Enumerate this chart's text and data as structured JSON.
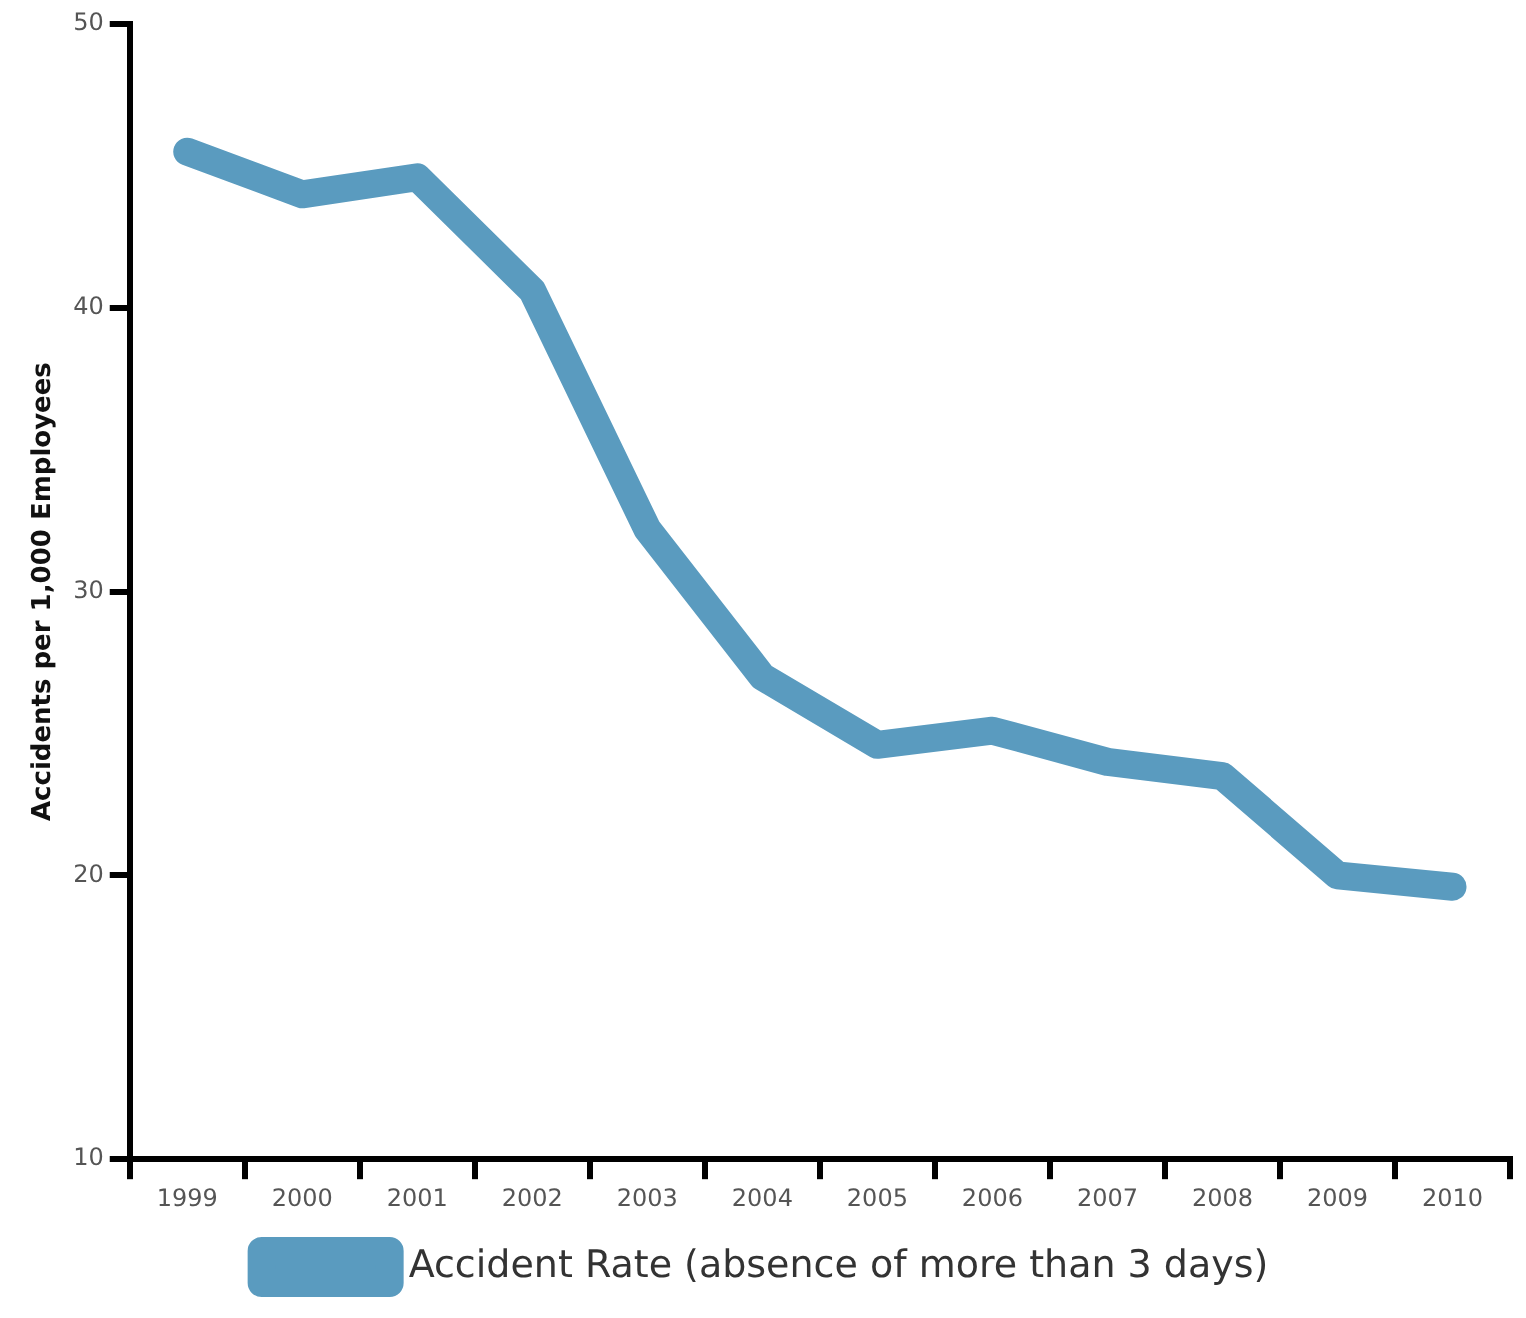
{
  "chart_data": {
    "type": "line",
    "ylabel": "Accidents per 1,000 Employees",
    "categories": [
      "1999",
      "2000",
      "2001",
      "2002",
      "2003",
      "2004",
      "2005",
      "2006",
      "2007",
      "2008",
      "2009",
      "2010"
    ],
    "series": [
      {
        "name": "Accident Rate (absence of more than 3 days)",
        "color": "#5a9bbf",
        "values": [
          45.5,
          44.0,
          44.6,
          40.6,
          32.2,
          27.0,
          24.6,
          25.1,
          24.0,
          23.5,
          20.0,
          19.6
        ]
      }
    ],
    "ylim": [
      10,
      50
    ],
    "yticks": [
      10,
      20,
      30,
      40,
      50
    ],
    "grid": false,
    "legend": "bottom",
    "marker": "none",
    "line_style": "solid"
  }
}
